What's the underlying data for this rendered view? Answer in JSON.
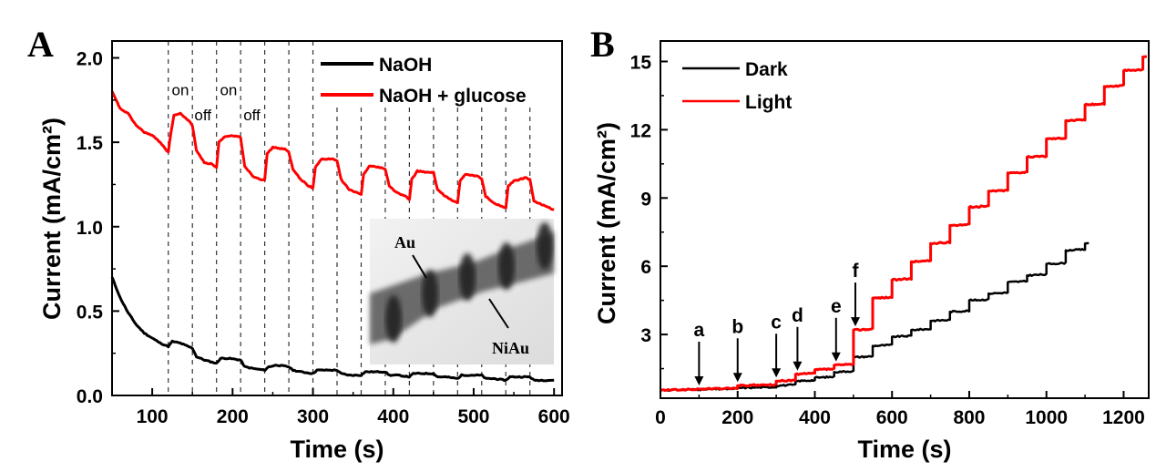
{
  "chart_data": [
    {
      "panel": "A",
      "type": "line",
      "title": "",
      "xlabel": "Time (s)",
      "ylabel": "Current (mA/cm²)",
      "xlim": [
        50,
        610
      ],
      "ylim": [
        0,
        2.1
      ],
      "xticks": [
        100,
        200,
        300,
        400,
        500,
        600
      ],
      "yticks": [
        0.0,
        0.5,
        1.0,
        1.5,
        2.0
      ],
      "ytick_labels": [
        "0.0",
        "0.5",
        "1.0",
        "1.5",
        "2.0"
      ],
      "grid": false,
      "legend_position": "top-right",
      "switch_times": [
        120,
        150,
        180,
        210,
        240,
        270,
        300,
        330,
        360,
        390,
        420,
        450,
        480,
        510,
        540,
        570
      ],
      "annotations": [
        {
          "text": "on",
          "x": 135,
          "y": 1.78
        },
        {
          "text": "off",
          "x": 163,
          "y": 1.63
        },
        {
          "text": "on",
          "x": 195,
          "y": 1.78
        },
        {
          "text": "off",
          "x": 224,
          "y": 1.63
        }
      ],
      "inset": {
        "labels": [
          "Au",
          "NiAu"
        ]
      },
      "series": [
        {
          "name": "NaOH",
          "color": "#000000",
          "x": [
            50,
            60,
            70,
            80,
            90,
            100,
            110,
            120,
            125,
            135,
            150,
            155,
            165,
            180,
            185,
            195,
            210,
            215,
            225,
            240,
            245,
            255,
            270,
            275,
            285,
            300,
            305,
            315,
            330,
            335,
            345,
            360,
            365,
            375,
            390,
            395,
            405,
            420,
            425,
            435,
            450,
            455,
            465,
            480,
            485,
            495,
            510,
            515,
            525,
            540,
            545,
            555,
            570,
            575,
            585,
            600
          ],
          "y": [
            0.7,
            0.58,
            0.49,
            0.42,
            0.37,
            0.34,
            0.31,
            0.29,
            0.32,
            0.31,
            0.28,
            0.23,
            0.21,
            0.19,
            0.22,
            0.22,
            0.21,
            0.17,
            0.16,
            0.15,
            0.17,
            0.18,
            0.17,
            0.15,
            0.14,
            0.13,
            0.15,
            0.15,
            0.15,
            0.13,
            0.12,
            0.12,
            0.14,
            0.14,
            0.14,
            0.12,
            0.12,
            0.11,
            0.13,
            0.13,
            0.13,
            0.11,
            0.11,
            0.1,
            0.12,
            0.12,
            0.12,
            0.1,
            0.1,
            0.09,
            0.11,
            0.11,
            0.11,
            0.09,
            0.09,
            0.09
          ]
        },
        {
          "name": "NaOH + glucose",
          "color": "#ff0000",
          "x": [
            50,
            55,
            60,
            70,
            80,
            90,
            100,
            110,
            120,
            123,
            127,
            135,
            145,
            150,
            155,
            165,
            175,
            180,
            183,
            190,
            200,
            210,
            215,
            225,
            235,
            240,
            243,
            250,
            265,
            270,
            275,
            285,
            295,
            300,
            303,
            310,
            325,
            330,
            335,
            345,
            355,
            360,
            363,
            370,
            385,
            390,
            395,
            405,
            415,
            420,
            423,
            430,
            445,
            450,
            455,
            465,
            475,
            480,
            483,
            490,
            505,
            510,
            515,
            525,
            535,
            540,
            543,
            550,
            565,
            570,
            575,
            585,
            600
          ],
          "y": [
            1.8,
            1.75,
            1.7,
            1.67,
            1.6,
            1.56,
            1.54,
            1.5,
            1.44,
            1.55,
            1.66,
            1.67,
            1.63,
            1.6,
            1.45,
            1.38,
            1.37,
            1.35,
            1.5,
            1.53,
            1.54,
            1.53,
            1.36,
            1.3,
            1.28,
            1.28,
            1.43,
            1.47,
            1.46,
            1.44,
            1.34,
            1.28,
            1.24,
            1.23,
            1.35,
            1.4,
            1.4,
            1.39,
            1.28,
            1.22,
            1.2,
            1.19,
            1.31,
            1.36,
            1.35,
            1.34,
            1.24,
            1.2,
            1.18,
            1.16,
            1.28,
            1.33,
            1.32,
            1.32,
            1.22,
            1.18,
            1.15,
            1.14,
            1.27,
            1.31,
            1.3,
            1.28,
            1.18,
            1.14,
            1.12,
            1.11,
            1.24,
            1.27,
            1.29,
            1.28,
            1.15,
            1.13,
            1.1
          ]
        }
      ]
    },
    {
      "panel": "B",
      "type": "line",
      "title": "",
      "xlabel": "Time (s)",
      "ylabel": "Current (mA/cm²)",
      "xlim": [
        0,
        1265
      ],
      "ylim": [
        0.2,
        15.9
      ],
      "xticks": [
        0,
        200,
        400,
        600,
        800,
        1000,
        1200
      ],
      "yticks": [
        3,
        6,
        9,
        12,
        15
      ],
      "grid": false,
      "legend_position": "top-left",
      "arrows": [
        {
          "label": "a",
          "x": 100
        },
        {
          "label": "b",
          "x": 200
        },
        {
          "label": "c",
          "x": 300
        },
        {
          "label": "d",
          "x": 355
        },
        {
          "label": "e",
          "x": 455
        },
        {
          "label": "f",
          "x": 505
        }
      ],
      "series": [
        {
          "name": "Dark",
          "color": "#000000",
          "x": [
            0,
            100,
            200,
            300,
            350,
            400,
            450,
            500,
            550,
            600,
            650,
            700,
            750,
            800,
            850,
            900,
            950,
            1000,
            1050,
            1100
          ],
          "y": [
            0.55,
            0.58,
            0.65,
            0.75,
            0.95,
            1.1,
            1.35,
            2.0,
            2.5,
            2.9,
            3.2,
            3.6,
            4.0,
            4.5,
            4.8,
            5.3,
            5.6,
            6.1,
            6.7,
            7.0
          ]
        },
        {
          "name": "Light",
          "color": "#ff0000",
          "x": [
            0,
            100,
            200,
            300,
            350,
            400,
            450,
            500,
            550,
            600,
            650,
            700,
            750,
            800,
            850,
            900,
            950,
            1000,
            1050,
            1100,
            1150,
            1200,
            1250
          ],
          "y": [
            0.55,
            0.6,
            0.75,
            0.95,
            1.25,
            1.45,
            1.65,
            3.2,
            4.6,
            5.4,
            6.2,
            7.0,
            7.8,
            8.6,
            9.3,
            10.1,
            10.8,
            11.6,
            12.4,
            13.1,
            13.9,
            14.6,
            15.2
          ]
        }
      ]
    }
  ],
  "panels": {
    "a_letter": "A",
    "b_letter": "B"
  }
}
